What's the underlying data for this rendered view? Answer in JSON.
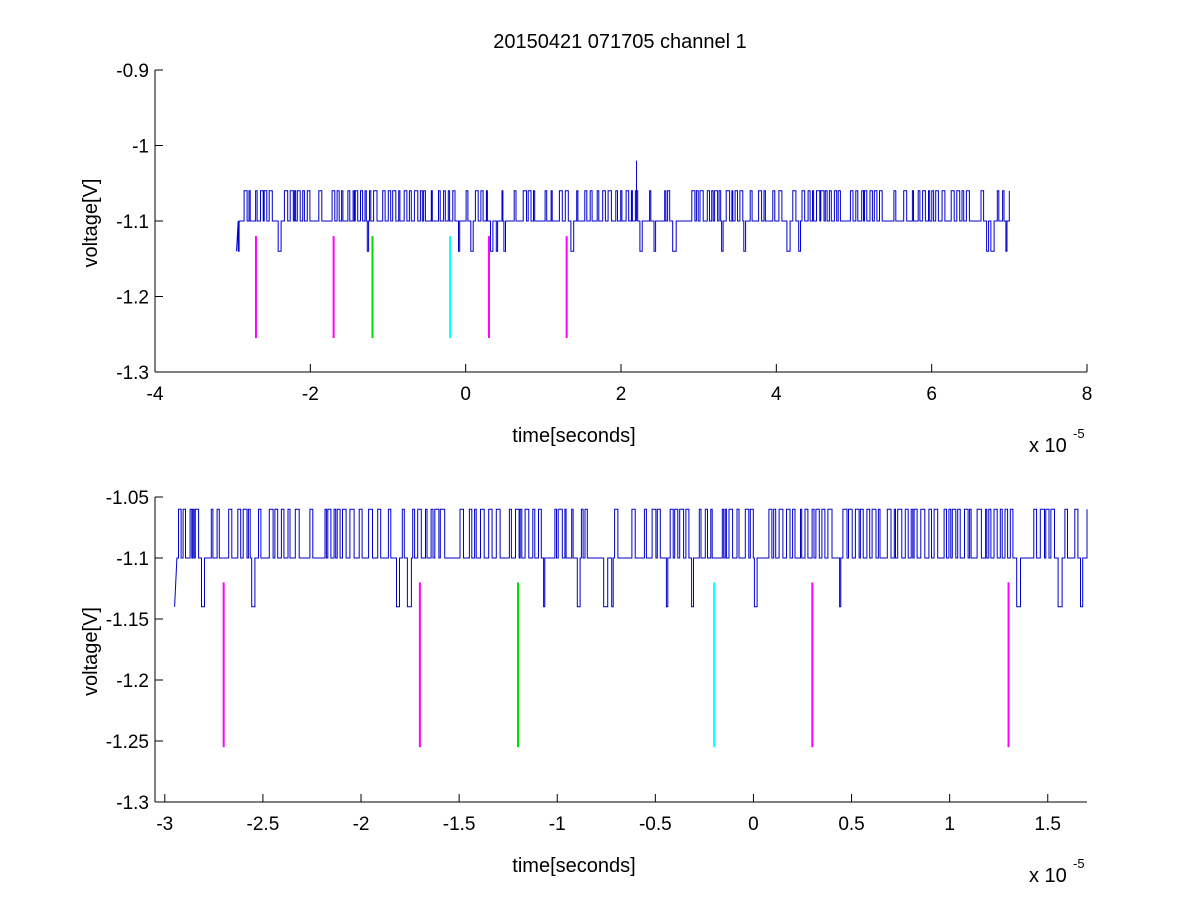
{
  "figure": {
    "title": "20150421 071705 channel 1",
    "background": "#ffffff"
  },
  "chart_data": [
    {
      "type": "line",
      "title": "20150421 071705 channel 1",
      "xlabel": "time[seconds]",
      "ylabel": "voltage[V]",
      "x_exponent_label": "x 10",
      "x_exponent": "-5",
      "xlim": [
        -4,
        8
      ],
      "ylim": [
        -1.3,
        -0.9
      ],
      "xticks": [
        -4,
        -2,
        0,
        2,
        4,
        6,
        8
      ],
      "xtick_labels": [
        "-4",
        "-2",
        "0",
        "2",
        "4",
        "6",
        "8"
      ],
      "yticks": [
        -1.3,
        -1.2,
        -1.1,
        -1,
        -0.9
      ],
      "ytick_labels": [
        "-1.3",
        "-1.2",
        "-1.1",
        "-1",
        "-0.9"
      ],
      "grid": false,
      "signal": {
        "color": "#0000cc",
        "x_start": -2.95,
        "x_end": 7.0,
        "levels": [
          -1.14,
          -1.1,
          -1.06
        ],
        "baseline": -1.1,
        "spike": {
          "x": 2.2,
          "y": -1.02
        }
      },
      "markers": [
        {
          "x": -2.7,
          "y_top": -1.12,
          "y_bottom": -1.255,
          "color": "#ff00ff"
        },
        {
          "x": -1.7,
          "y_top": -1.12,
          "y_bottom": -1.255,
          "color": "#ff00ff"
        },
        {
          "x": -1.2,
          "y_top": -1.12,
          "y_bottom": -1.255,
          "color": "#00dd00"
        },
        {
          "x": -0.2,
          "y_top": -1.12,
          "y_bottom": -1.255,
          "color": "#00ffff"
        },
        {
          "x": 0.3,
          "y_top": -1.12,
          "y_bottom": -1.255,
          "color": "#ff00ff"
        },
        {
          "x": 1.3,
          "y_top": -1.12,
          "y_bottom": -1.255,
          "color": "#ff00ff"
        }
      ]
    },
    {
      "type": "line",
      "title": "",
      "xlabel": "time[seconds]",
      "ylabel": "voltage[V]",
      "x_exponent_label": "x 10",
      "x_exponent": "-5",
      "xlim": [
        -3.05,
        1.7
      ],
      "ylim": [
        -1.3,
        -1.05
      ],
      "xticks": [
        -3,
        -2.5,
        -2,
        -1.5,
        -1,
        -0.5,
        0,
        0.5,
        1,
        1.5
      ],
      "xtick_labels": [
        "-3",
        "-2.5",
        "-2",
        "-1.5",
        "-1",
        "-0.5",
        "0",
        "0.5",
        "1",
        "1.5"
      ],
      "yticks": [
        -1.3,
        -1.25,
        -1.2,
        -1.15,
        -1.1,
        -1.05
      ],
      "ytick_labels": [
        "-1.3",
        "-1.25",
        "-1.2",
        "-1.15",
        "-1.1",
        "-1.05"
      ],
      "grid": false,
      "signal": {
        "color": "#0000cc",
        "x_start": -2.95,
        "x_end": 1.7,
        "levels": [
          -1.14,
          -1.1,
          -1.06
        ],
        "baseline": -1.1
      },
      "markers": [
        {
          "x": -2.7,
          "y_top": -1.12,
          "y_bottom": -1.255,
          "color": "#ff00ff"
        },
        {
          "x": -1.7,
          "y_top": -1.12,
          "y_bottom": -1.255,
          "color": "#ff00ff"
        },
        {
          "x": -1.2,
          "y_top": -1.12,
          "y_bottom": -1.255,
          "color": "#00dd00"
        },
        {
          "x": -0.2,
          "y_top": -1.12,
          "y_bottom": -1.255,
          "color": "#00ffff"
        },
        {
          "x": 0.3,
          "y_top": -1.12,
          "y_bottom": -1.255,
          "color": "#ff00ff"
        },
        {
          "x": 1.3,
          "y_top": -1.12,
          "y_bottom": -1.255,
          "color": "#ff00ff"
        }
      ]
    }
  ]
}
